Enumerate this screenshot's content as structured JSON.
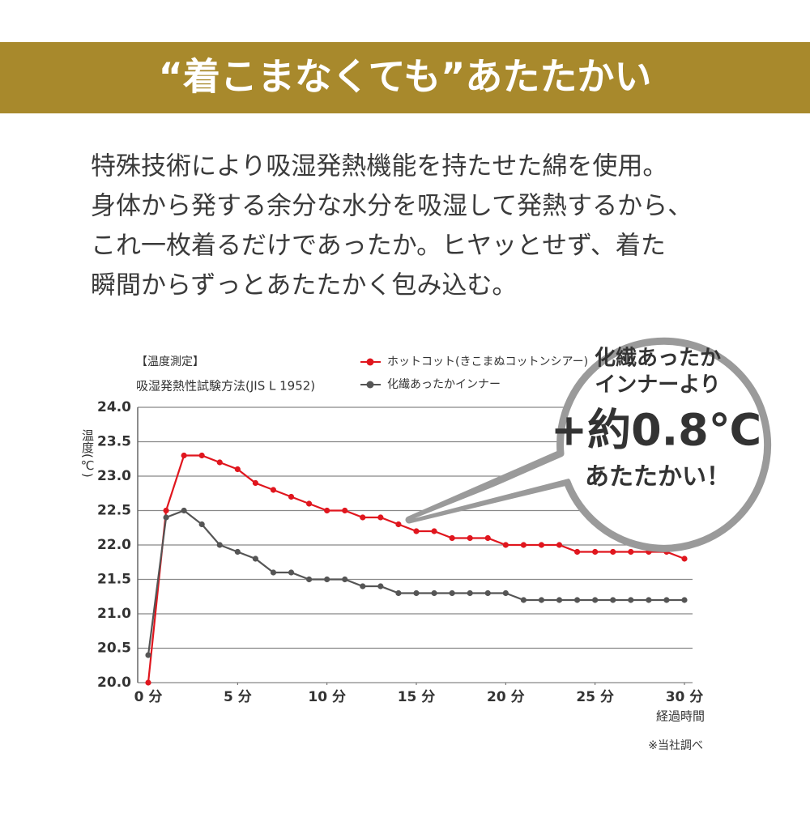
{
  "header": {
    "title": "“着こまなくても”あたたかい"
  },
  "description": [
    "特殊技術により吸湿発熱機能を持たせた綿を使用。",
    "身体から発する余分な水分を吸湿して発熱するから、",
    "これ一枚着るだけであったか。ヒヤッとせず、着た",
    "瞬間からずっとあたたかく包み込む。"
  ],
  "chart_data": {
    "type": "line",
    "method": [
      "【温度測定】",
      "吸湿発熱性試験方法(JIS L 1952)"
    ],
    "y_label": "温度(℃)",
    "x_label": "経過時間",
    "note": "※当社調べ",
    "x": [
      0,
      1,
      2,
      3,
      4,
      5,
      6,
      7,
      8,
      9,
      10,
      11,
      12,
      13,
      14,
      15,
      16,
      17,
      18,
      19,
      20,
      21,
      22,
      23,
      24,
      25,
      26,
      27,
      28,
      29,
      30
    ],
    "series": [
      {
        "name": "ホットコット(きこまぬコットンシアー)",
        "color": "#e0161e",
        "values": [
          20.0,
          22.5,
          23.3,
          23.3,
          23.2,
          23.1,
          22.9,
          22.8,
          22.7,
          22.6,
          22.5,
          22.5,
          22.4,
          22.4,
          22.3,
          22.2,
          22.2,
          22.1,
          22.1,
          22.1,
          22.0,
          22.0,
          22.0,
          22.0,
          21.9,
          21.9,
          21.9,
          21.9,
          21.9,
          21.9,
          21.8
        ]
      },
      {
        "name": "化繊あったかインナー",
        "color": "#555555",
        "values": [
          20.4,
          22.4,
          22.5,
          22.3,
          22.0,
          21.9,
          21.8,
          21.6,
          21.6,
          21.5,
          21.5,
          21.5,
          21.4,
          21.4,
          21.3,
          21.3,
          21.3,
          21.3,
          21.3,
          21.3,
          21.3,
          21.2,
          21.2,
          21.2,
          21.2,
          21.2,
          21.2,
          21.2,
          21.2,
          21.2,
          21.2
        ]
      }
    ],
    "xlim": [
      0,
      30
    ],
    "xticks": [
      {
        "value": 0,
        "label": "0 分"
      },
      {
        "value": 5,
        "label": "5 分"
      },
      {
        "value": 10,
        "label": "10 分"
      },
      {
        "value": 15,
        "label": "15 分"
      },
      {
        "value": 20,
        "label": "20 分"
      },
      {
        "value": 25,
        "label": "25 分"
      },
      {
        "value": 30,
        "label": "30 分"
      }
    ],
    "ylim": [
      20,
      24
    ],
    "yticks": [
      {
        "value": 20,
        "label": "20.0"
      },
      {
        "value": 20.5,
        "label": "20.5"
      },
      {
        "value": 21,
        "label": "21.0"
      },
      {
        "value": 21.5,
        "label": "21.5"
      },
      {
        "value": 22,
        "label": "22.0"
      },
      {
        "value": 22.5,
        "label": "22.5"
      },
      {
        "value": 23,
        "label": "23.0"
      },
      {
        "value": 23.5,
        "label": "23.5"
      },
      {
        "value": 24,
        "label": "24.0"
      }
    ],
    "grid": true,
    "callout": [
      "化繊あったか",
      "インナーより",
      "+約0.8℃",
      "あたたかい！"
    ]
  }
}
